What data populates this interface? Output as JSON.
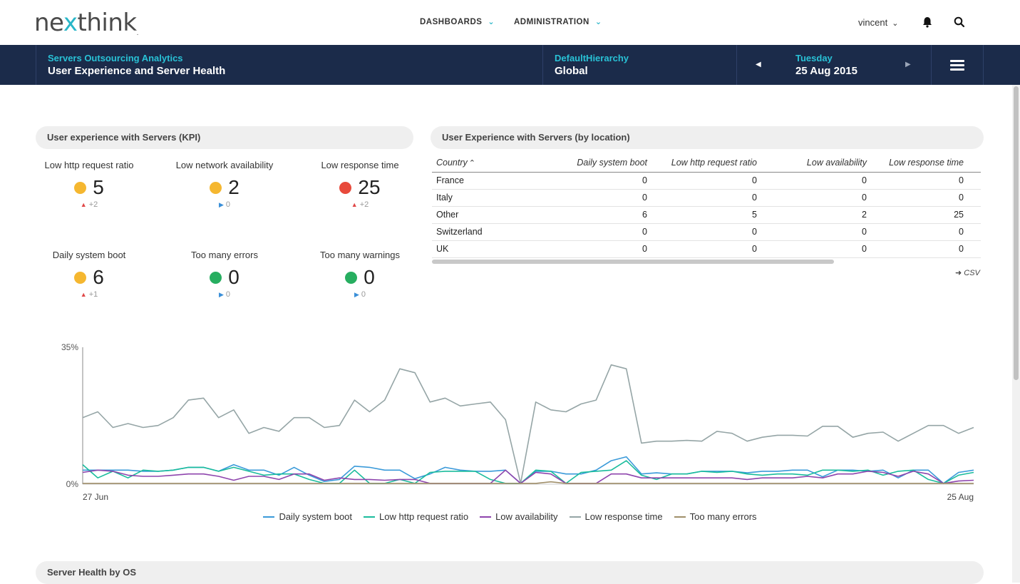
{
  "brand": {
    "logo_pre": "ne",
    "logo_x": "x",
    "logo_post": "think",
    "logo_tm": "."
  },
  "nav": {
    "dashboards": "DASHBOARDS",
    "administration": "ADMINISTRATION",
    "user": "vincent"
  },
  "header": {
    "context_small": "Servers Outsourcing Analytics",
    "context_big": "User Experience and Server Health",
    "hierarchy_small": "DefaultHierarchy",
    "hierarchy_big": "Global",
    "date_small": "Tuesday",
    "date_big": "25 Aug 2015"
  },
  "kpi_panel": {
    "title": "User experience with Servers (KPI)",
    "items": [
      {
        "label": "Low http request ratio",
        "value": "5",
        "delta": "+2",
        "trend": "up",
        "status": "#f5b730"
      },
      {
        "label": "Low network availability",
        "value": "2",
        "delta": "0",
        "trend": "flat",
        "status": "#f5b730"
      },
      {
        "label": "Low response time",
        "value": "25",
        "delta": "+2",
        "trend": "up",
        "status": "#e84a3b"
      },
      {
        "label": "Daily system boot",
        "value": "6",
        "delta": "+1",
        "trend": "up",
        "status": "#f5b730"
      },
      {
        "label": "Too many errors",
        "value": "0",
        "delta": "0",
        "trend": "flat",
        "status": "#27ae60"
      },
      {
        "label": "Too many warnings",
        "value": "0",
        "delta": "0",
        "trend": "flat",
        "status": "#27ae60"
      }
    ]
  },
  "location_panel": {
    "title": "User Experience with Servers (by location)",
    "columns": [
      "Country",
      "Daily system boot",
      "Low http request ratio",
      "Low availability",
      "Low response time"
    ],
    "rows": [
      [
        "France",
        "0",
        "0",
        "0",
        "0"
      ],
      [
        "Italy",
        "0",
        "0",
        "0",
        "0"
      ],
      [
        "Other",
        "6",
        "5",
        "2",
        "25"
      ],
      [
        "Switzerland",
        "0",
        "0",
        "0",
        "0"
      ],
      [
        "UK",
        "0",
        "0",
        "0",
        "0"
      ]
    ],
    "csv_label": "CSV"
  },
  "chart_data": {
    "type": "line",
    "y_ticks": [
      "35%",
      "0%"
    ],
    "ylim": [
      0,
      35
    ],
    "x_start_label": "27 Jun",
    "x_end_label": "25 Aug",
    "series": [
      {
        "name": "Daily system boot",
        "color": "#3a9ad9",
        "values": [
          3.6,
          3.6,
          3.6,
          3.6,
          3.3,
          3.3,
          3.6,
          4.3,
          4.3,
          3.3,
          5.0,
          3.6,
          3.6,
          2.3,
          4.3,
          2.3,
          0.7,
          1.2,
          4.6,
          4.3,
          3.6,
          3.6,
          1.4,
          2.6,
          4.3,
          3.6,
          3.3,
          3.3,
          3.6,
          0.2,
          3.3,
          3.3,
          2.6,
          2.6,
          3.6,
          6.0,
          7.0,
          2.6,
          2.9,
          2.6,
          2.6,
          3.3,
          3.3,
          3.3,
          2.9,
          3.3,
          3.3,
          3.6,
          3.6,
          1.9,
          3.6,
          3.6,
          3.3,
          3.6,
          1.6,
          3.6,
          3.6,
          0.2,
          3.0,
          3.6
        ]
      },
      {
        "name": "Low http request ratio",
        "color": "#1abc9c",
        "values": [
          5.0,
          1.6,
          3.3,
          1.6,
          3.6,
          3.3,
          3.6,
          4.3,
          4.3,
          3.3,
          4.3,
          3.3,
          2.3,
          2.6,
          2.6,
          1.2,
          0.2,
          0.2,
          3.6,
          0.2,
          0.2,
          1.2,
          0.2,
          3.0,
          3.3,
          3.3,
          3.3,
          1.2,
          0.2,
          0.2,
          3.6,
          3.3,
          0.2,
          3.0,
          3.3,
          3.6,
          6.0,
          2.3,
          1.2,
          2.6,
          2.6,
          3.3,
          3.0,
          3.3,
          2.6,
          2.3,
          2.6,
          2.6,
          2.3,
          3.6,
          3.6,
          3.3,
          3.6,
          2.3,
          3.3,
          3.6,
          1.2,
          0.2,
          2.3,
          3.0
        ]
      },
      {
        "name": "Low availability",
        "color": "#8e44ad",
        "values": [
          3.0,
          3.6,
          3.3,
          2.3,
          2.0,
          2.0,
          2.3,
          2.6,
          2.6,
          2.0,
          1.0,
          2.0,
          2.0,
          1.2,
          2.6,
          2.6,
          1.0,
          1.6,
          1.2,
          1.2,
          1.0,
          1.2,
          1.2,
          0.2,
          0.2,
          0.2,
          0.2,
          0.2,
          3.6,
          0.2,
          3.0,
          2.6,
          0.2,
          0.2,
          0.2,
          2.6,
          2.6,
          1.6,
          1.6,
          1.6,
          1.6,
          1.6,
          1.6,
          1.6,
          1.2,
          1.6,
          1.6,
          1.6,
          2.0,
          1.6,
          2.6,
          2.6,
          3.3,
          3.0,
          2.0,
          3.3,
          2.6,
          0.2,
          0.8,
          1.0
        ]
      },
      {
        "name": "Low response time",
        "color": "#95a5a6",
        "values": [
          17.0,
          18.5,
          14.5,
          15.5,
          14.5,
          15.0,
          17.0,
          21.5,
          22.0,
          17.0,
          19.0,
          13.0,
          14.5,
          13.5,
          17.0,
          17.0,
          14.5,
          15.0,
          21.5,
          18.5,
          21.5,
          29.5,
          28.5,
          21.0,
          22.0,
          20.0,
          20.5,
          21.0,
          16.5,
          0.2,
          21.0,
          19.0,
          18.5,
          20.5,
          21.5,
          30.5,
          29.5,
          10.5,
          11.0,
          11.0,
          11.2,
          11.0,
          13.5,
          13.0,
          11.0,
          12.0,
          12.5,
          12.5,
          12.3,
          14.8,
          14.8,
          12.0,
          13.0,
          13.3,
          11.0,
          13.0,
          15.0,
          15.0,
          13.0,
          14.5
        ]
      },
      {
        "name": "Too many errors",
        "color": "#a08f6a",
        "values": [
          0.2,
          0.2,
          0.2,
          0.2,
          0.2,
          0.2,
          0.2,
          0.2,
          0.2,
          0.2,
          0.2,
          0.2,
          0.2,
          0.2,
          0.2,
          0.2,
          0.2,
          0.2,
          0.2,
          0.2,
          0.2,
          0.2,
          0.2,
          0.2,
          0.2,
          0.2,
          0.2,
          0.2,
          0.2,
          0.2,
          0.2,
          0.6,
          0.2,
          0.2,
          0.2,
          0.2,
          0.2,
          0.2,
          0.2,
          0.2,
          0.2,
          0.2,
          0.2,
          0.2,
          0.2,
          0.2,
          0.2,
          0.2,
          0.2,
          0.2,
          0.2,
          0.2,
          0.2,
          0.2,
          0.2,
          0.2,
          0.2,
          0.2,
          0.2,
          0.2
        ]
      }
    ]
  },
  "bottom_panel": {
    "title": "Server Health by OS"
  }
}
